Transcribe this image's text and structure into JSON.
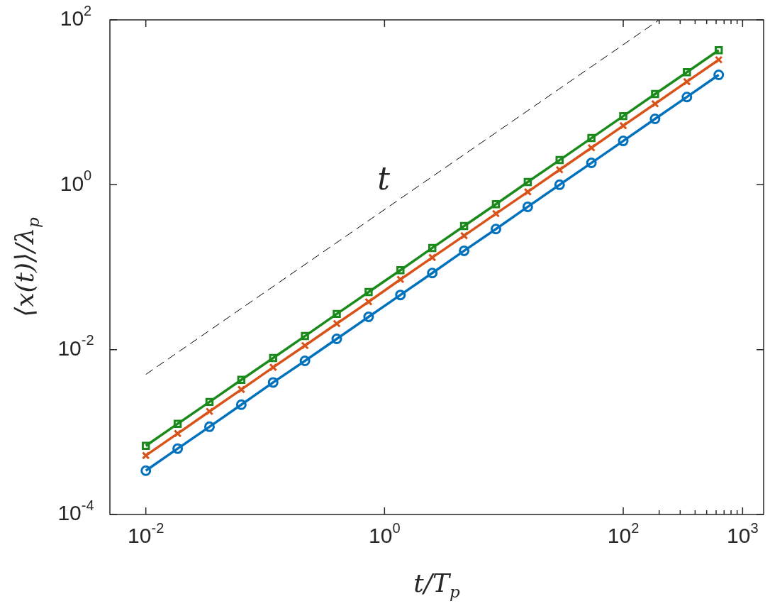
{
  "chart_data": {
    "type": "line",
    "xlabel": "t/T$_{p}$",
    "ylabel": "⟨x(t)⟩/λ$_{p}$",
    "log": "xy",
    "grid": false,
    "annotations": [
      "t"
    ],
    "x": [
      0.01,
      0.01848,
      0.03415,
      0.0631,
      0.1166,
      0.2154,
      0.398,
      0.7356,
      1.359,
      2.512,
      4.642,
      8.577,
      15.85,
      29.29,
      54.12,
      100,
      184.8,
      341.5,
      631
    ],
    "xlim": [
      0.005,
      1500
    ],
    "ylim": [
      0.0001,
      100
    ],
    "xticks": [
      {
        "value": 0.01,
        "label": "10$^{-2}$"
      },
      {
        "value": 1,
        "label": "10$^{0}$"
      },
      {
        "value": 100,
        "label": "10$^{2}$"
      },
      {
        "value": 200,
        "label": null
      },
      {
        "value": 300,
        "label": null
      },
      {
        "value": 400,
        "label": null
      },
      {
        "value": 500,
        "label": null
      },
      {
        "value": 600,
        "label": null
      },
      {
        "value": 700,
        "label": null
      },
      {
        "value": 800,
        "label": null
      },
      {
        "value": 900,
        "label": null
      },
      {
        "value": 1000,
        "label": "10$^{3}$"
      }
    ],
    "yticks": [
      {
        "value": 0.0001,
        "label": "10$^{-4}$"
      },
      {
        "value": 0.01,
        "label": "10$^{-2}$"
      },
      {
        "value": 1,
        "label": "10$^{0}$"
      },
      {
        "value": 100,
        "label": "10$^{2}$"
      }
    ],
    "series": [
      {
        "color": "#0072bd",
        "marker": "circle",
        "values": [
          0.00034,
          0.00063,
          0.00116,
          0.00215,
          0.004,
          0.0073,
          0.0135,
          0.025,
          0.046,
          0.085,
          0.158,
          0.29,
          0.54,
          1.0,
          1.84,
          3.4,
          6.3,
          11.6,
          21.5
        ]
      },
      {
        "color": "#d95319",
        "marker": "cross",
        "values": [
          0.00052,
          0.00096,
          0.00178,
          0.00328,
          0.0061,
          0.0112,
          0.0207,
          0.038,
          0.071,
          0.131,
          0.241,
          0.446,
          0.82,
          1.52,
          2.81,
          5.2,
          9.6,
          17.8,
          32.8
        ]
      },
      {
        "color": "#1a8a1a",
        "marker": "square",
        "values": [
          0.00068,
          0.00126,
          0.00232,
          0.0043,
          0.0079,
          0.0146,
          0.0271,
          0.05,
          0.092,
          0.171,
          0.316,
          0.58,
          1.08,
          1.99,
          3.68,
          6.8,
          12.6,
          23.2,
          42.9
        ]
      },
      {
        "color": "#000000",
        "marker": "none",
        "line_style": "dashed",
        "x": [
          0.01,
          200
        ],
        "values": [
          0.005,
          100
        ]
      }
    ]
  }
}
